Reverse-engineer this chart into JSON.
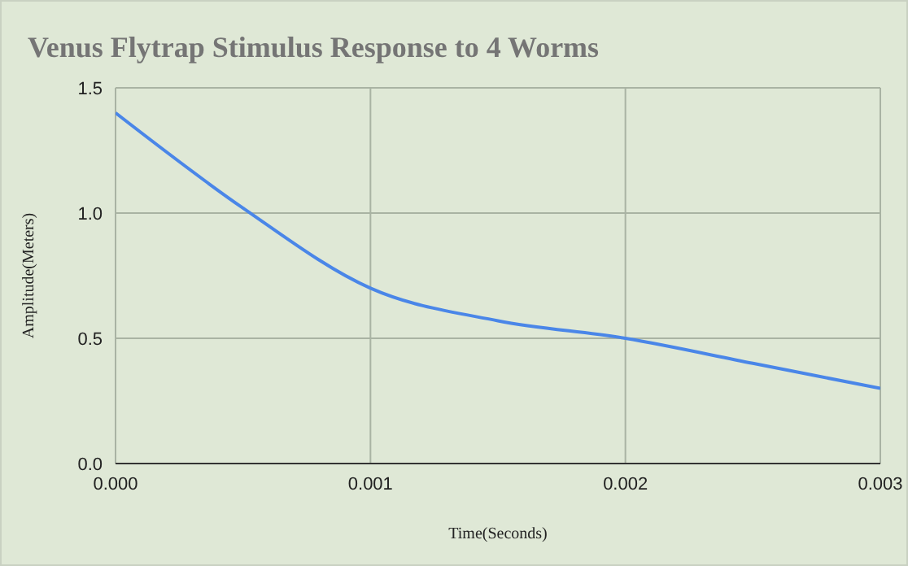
{
  "chart_data": {
    "type": "line",
    "title": "Venus Flytrap Stimulus Response to 4 Worms",
    "xlabel": "Time(Seconds)",
    "ylabel": "Amplitude(Meters)",
    "x": [
      0,
      0.0005,
      0.001,
      0.0015,
      0.002,
      0.0025,
      0.003
    ],
    "series": [
      {
        "color": "#4a86e8",
        "values": [
          1.4,
          1.02,
          0.7,
          0.57,
          0.5,
          0.4,
          0.3
        ]
      }
    ],
    "xlim": [
      0,
      0.003
    ],
    "xticks": [
      {
        "value": 0,
        "label": "0.000"
      },
      {
        "value": 0.001,
        "label": "0.001"
      },
      {
        "value": 0.002,
        "label": "0.002"
      },
      {
        "value": 0.003,
        "label": "0.003"
      }
    ],
    "ylim": [
      0,
      1.5
    ],
    "yticks": [
      {
        "value": 0,
        "label": "0.0"
      },
      {
        "value": 0.5,
        "label": "0.5"
      },
      {
        "value": 1,
        "label": "1.0"
      },
      {
        "value": 1.5,
        "label": "1.5"
      }
    ],
    "grid": true,
    "marker": "none"
  }
}
